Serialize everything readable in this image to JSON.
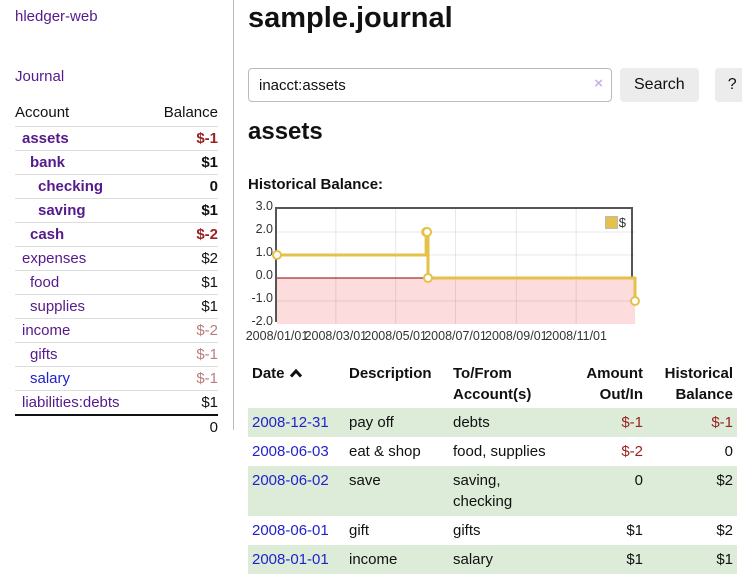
{
  "app": {
    "title": "hledger-web"
  },
  "colors": {
    "purple": "#551a8b",
    "blue": "#2222cc",
    "neg": "#9c1f1f",
    "negmuted": "#b87e7e",
    "green": "#dcecd8",
    "gold": "#e6c14a",
    "pink": "#fcdcdc",
    "zero": "#8b0000"
  },
  "sidebar": {
    "journal_label": "Journal",
    "accounts_table": {
      "account_header": "Account",
      "balance_header": "Balance",
      "rows": [
        {
          "name": "assets",
          "balance": "$-1",
          "indent": 1,
          "bold": true,
          "link": "purple"
        },
        {
          "name": "bank",
          "balance": "$1",
          "indent": 2,
          "bold": true,
          "link": "purple"
        },
        {
          "name": "checking",
          "balance": "0",
          "indent": 3,
          "bold": true,
          "link": "purple"
        },
        {
          "name": "saving",
          "balance": "$1",
          "indent": 3,
          "bold": true,
          "link": "purple"
        },
        {
          "name": "cash",
          "balance": "$-2",
          "indent": 2,
          "bold": true,
          "link": "purple"
        },
        {
          "name": "expenses",
          "balance": "$2",
          "indent": 1,
          "bold": false,
          "link": "purple"
        },
        {
          "name": "food",
          "balance": "$1",
          "indent": 2,
          "bold": false,
          "link": "purple"
        },
        {
          "name": "supplies",
          "balance": "$1",
          "indent": 2,
          "bold": false,
          "link": "purple"
        },
        {
          "name": "income",
          "balance": "$-2",
          "indent": 1,
          "bold": false,
          "link": "purple"
        },
        {
          "name": "gifts",
          "balance": "$-1",
          "indent": 2,
          "bold": false,
          "link": "purple"
        },
        {
          "name": "salary",
          "balance": "$-1",
          "indent": 2,
          "bold": false,
          "link": "blue"
        },
        {
          "name": "liabilities:debts",
          "balance": "$1",
          "indent": 1,
          "bold": false,
          "link": "purple"
        }
      ],
      "total": "0"
    }
  },
  "main": {
    "title": "sample.journal",
    "search": {
      "value": "inacct:assets",
      "clear_icon": "×",
      "button_label": "Search",
      "help_label": "?"
    },
    "account_heading": "assets",
    "chart_label": "Historical Balance:",
    "register": {
      "columns": [
        {
          "lines": [
            "Date"
          ],
          "sort": "asc",
          "align": "left"
        },
        {
          "lines": [
            "Description"
          ],
          "align": "left"
        },
        {
          "lines": [
            "To/From",
            "Account(s)"
          ],
          "align": "left"
        },
        {
          "lines": [
            "Amount",
            "Out/In"
          ],
          "align": "right"
        },
        {
          "lines": [
            "Historical",
            "Balance"
          ],
          "align": "right"
        }
      ],
      "rows": [
        {
          "date": "2008-12-31",
          "description": "pay off",
          "accounts": "debts",
          "amount": "$-1",
          "balance": "$-1"
        },
        {
          "date": "2008-06-03",
          "description": "eat & shop",
          "accounts": "food, supplies",
          "amount": "$-2",
          "balance": "0"
        },
        {
          "date": "2008-06-02",
          "description": "save",
          "accounts": "saving, checking",
          "amount": "0",
          "balance": "$2"
        },
        {
          "date": "2008-06-01",
          "description": "gift",
          "accounts": "gifts",
          "amount": "$1",
          "balance": "$2"
        },
        {
          "date": "2008-01-01",
          "description": "income",
          "accounts": "salary",
          "amount": "$1",
          "balance": "$1"
        }
      ]
    }
  },
  "chart_data": {
    "type": "line",
    "step": true,
    "title": "Historical Balance:",
    "x_range": [
      "2008-01-01",
      "2008-12-31"
    ],
    "ylim": [
      -2,
      3
    ],
    "y_ticks": [
      3.0,
      2.0,
      1.0,
      0.0,
      -1.0,
      -2.0
    ],
    "x_ticks": [
      "2008-01-01",
      "2008-03-01",
      "2008-05-01",
      "2008-07-01",
      "2008-09-01",
      "2008-11-01"
    ],
    "x_tick_labels": [
      "2008/01/01",
      "2008/03/01",
      "2008/05/01",
      "2008/07/01",
      "2008/09/01",
      "2008/11/01"
    ],
    "series": [
      {
        "name": "$",
        "points": [
          [
            "2008-01-01",
            1
          ],
          [
            "2008-06-01",
            2
          ],
          [
            "2008-06-02",
            2
          ],
          [
            "2008-06-03",
            0
          ],
          [
            "2008-12-31",
            -1
          ]
        ]
      }
    ],
    "legend_position": "top-right",
    "negative_region_fill": true,
    "grid": true
  }
}
